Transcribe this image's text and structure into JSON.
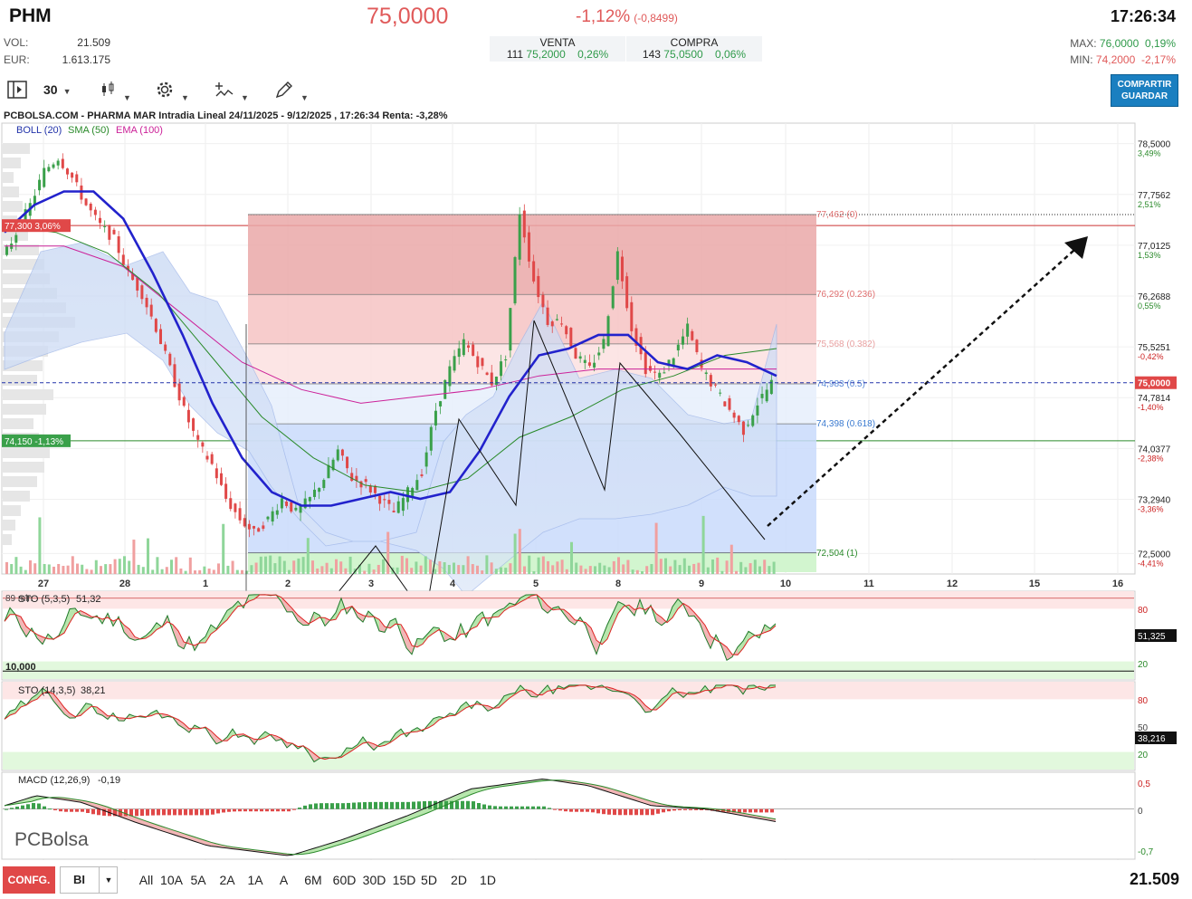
{
  "header": {
    "ticker": "PHM",
    "price": "75,0000",
    "change_pct": "-1,12%",
    "change_abs": "(-0,8499)",
    "time": "17:26:34",
    "vol_label": "VOL:",
    "vol_value": "21.509",
    "eur_label": "EUR:",
    "eur_value": "1.613.175",
    "venta_label": "VENTA",
    "venta_qty": "111",
    "venta_price": "75,2000",
    "venta_pct": "0,26%",
    "compra_label": "COMPRA",
    "compra_qty": "143",
    "compra_price": "75,0500",
    "compra_pct": "0,06%",
    "max_label": "MAX:",
    "max_value": "76,0000",
    "max_pct": "0,19%",
    "min_label": "MIN:",
    "min_value": "74,2000",
    "min_pct": "-2,17%"
  },
  "toolbar": {
    "interval": "30",
    "share_label_1": "COMPARTIR",
    "share_label_2": "GUARDAR"
  },
  "chart_data": [
    {
      "type": "line",
      "title": "PCBOLSA.COM - PHARMA MAR Intradia Lineal 24/11/2025 - 9/12/2025 , 17:26:34 Renta: -3,28%",
      "indicators": {
        "boll": "BOLL (20)",
        "sma": "SMA (50)",
        "ema": "EMA (100)"
      },
      "x_ticks": [
        "27",
        "28",
        "1",
        "2",
        "3",
        "4",
        "5",
        "8",
        "9",
        "10",
        "11",
        "12",
        "15",
        "16"
      ],
      "y_ticks": [
        {
          "value": 78.5,
          "label": "78,5000",
          "pct": "3,49%"
        },
        {
          "value": 77.7562,
          "label": "77,7562",
          "pct": "2,51%"
        },
        {
          "value": 77.0125,
          "label": "77,0125",
          "pct": "1,53%"
        },
        {
          "value": 76.2688,
          "label": "76,2688",
          "pct": "0,55%"
        },
        {
          "value": 75.5251,
          "label": "75,5251",
          "pct": "-0,42%"
        },
        {
          "value": 74.7814,
          "label": "74,7814",
          "pct": "-1,40%"
        },
        {
          "value": 74.0377,
          "label": "74,0377",
          "pct": "-2,38%"
        },
        {
          "value": 73.294,
          "label": "73,2940",
          "pct": "-3,36%"
        },
        {
          "value": 72.5,
          "label": "72,5000",
          "pct": "-4,41%"
        }
      ],
      "ylim": [
        72.2,
        78.8
      ],
      "last_price_tag": "75,0000",
      "level_tags": [
        {
          "value": 77.3,
          "label": "77,300  3,06%"
        },
        {
          "value": 74.15,
          "label": "74,150  -1,13%"
        }
      ],
      "fibonacci": [
        {
          "value": 77.462,
          "label": "77,462 (0)"
        },
        {
          "value": 76.292,
          "label": "76,292 (0.236)"
        },
        {
          "value": 75.568,
          "label": "75,568 (0.382)"
        },
        {
          "value": 74.983,
          "label": "74,983 (0.5)"
        },
        {
          "value": 74.398,
          "label": "74,398 (0.618)"
        },
        {
          "value": 72.504,
          "label": "72,504 (1)"
        }
      ],
      "price_series": [
        76.8,
        77.2,
        77.6,
        78.1,
        78.3,
        78.0,
        77.6,
        77.3,
        77.1,
        76.6,
        76.3,
        75.8,
        75.2,
        74.6,
        74.1,
        73.8,
        73.3,
        73.0,
        72.8,
        73.0,
        73.3,
        73.1,
        73.3,
        73.6,
        74.0,
        73.6,
        73.5,
        73.3,
        73.1,
        73.4,
        73.7,
        74.6,
        75.2,
        75.6,
        75.3,
        75.0,
        75.4,
        77.5,
        76.5,
        75.9,
        75.9,
        75.4,
        75.2,
        75.6,
        76.9,
        75.8,
        75.2,
        75.1,
        75.4,
        75.8,
        75.2,
        74.9,
        74.6,
        74.3,
        74.7,
        75.0
      ],
      "boll_mid": [
        77.2,
        77.6,
        77.8,
        77.8,
        77.4,
        76.6,
        75.7,
        74.7,
        73.9,
        73.4,
        73.2,
        73.2,
        73.3,
        73.4,
        73.3,
        73.4,
        74.0,
        74.8,
        75.4,
        75.5,
        75.7,
        75.7,
        75.3,
        75.2,
        75.4,
        75.3,
        75.1
      ],
      "sma50": [
        77.3,
        77.2,
        76.9,
        76.3,
        75.4,
        74.5,
        73.9,
        73.5,
        73.4,
        73.6,
        74.2,
        74.5,
        74.9,
        75.1,
        75.4,
        75.5
      ],
      "ema100": [
        77.0,
        77.0,
        76.7,
        76.0,
        75.3,
        74.9,
        74.7,
        74.8,
        74.9,
        75.1,
        75.2,
        75.2,
        75.2,
        75.2
      ],
      "volume_bars": "relative"
    },
    {
      "type": "line",
      "title": "STO (5,3,5)",
      "value": "51,32",
      "tag": "51,325",
      "note_left": "89 min",
      "level_left": "10,000",
      "y_ticks": [
        "80",
        "20"
      ],
      "ylim": [
        0,
        100
      ]
    },
    {
      "type": "line",
      "title": "STO (14,3,5)",
      "value": "38,21",
      "tag": "38,216",
      "y_ticks": [
        "80",
        "50",
        "20"
      ],
      "ylim": [
        0,
        100
      ]
    },
    {
      "type": "bar",
      "title": "MACD (12,26,9)",
      "value": "-0,19",
      "y_ticks": [
        "0,5",
        "0",
        "-0,7"
      ],
      "ylim": [
        -0.75,
        0.55
      ]
    }
  ],
  "logo": "PCBolsa",
  "bottom": {
    "config_label": "CONFG.",
    "select_label": "BI",
    "ranges": [
      "All",
      "10A",
      "5A",
      "2A",
      "1A",
      "A",
      "6M",
      "60D",
      "30D",
      "15D",
      "5D",
      "2D",
      "1D"
    ],
    "volume_total": "21.509"
  }
}
